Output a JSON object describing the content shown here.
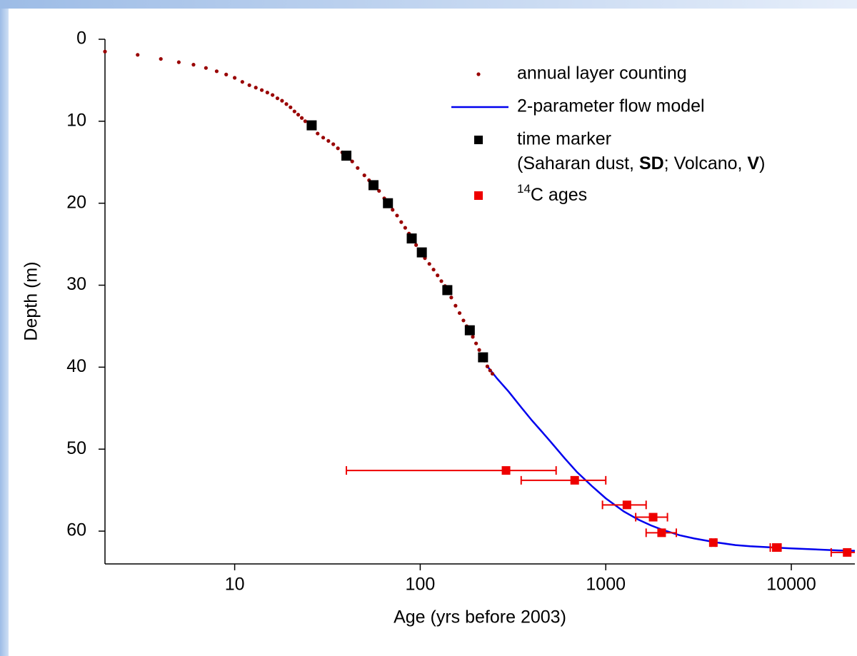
{
  "chart_data": {
    "type": "scatter",
    "x_label": "Age (yrs before 2003)",
    "y_label": "Depth (m)",
    "xscale": "log",
    "y_inverted": true,
    "xlim": [
      2,
      22000
    ],
    "ylim": [
      0,
      64
    ],
    "xticks": [
      10,
      100,
      1000,
      10000
    ],
    "yticks": [
      0,
      10,
      20,
      30,
      40,
      50,
      60
    ],
    "legend": "upper right",
    "legend_note": [
      "(Saharan dust, ",
      "SD",
      "; Volcano, ",
      "V",
      ")"
    ],
    "series": [
      {
        "name": "annual layer counting",
        "kind": "dots",
        "color": "#990000",
        "x": [
          2,
          3,
          4,
          5,
          6,
          7,
          8,
          9,
          10,
          11,
          12,
          13,
          14,
          15,
          16,
          17,
          18,
          19,
          20,
          21,
          22,
          23,
          24,
          25,
          26,
          28,
          30,
          32,
          34,
          36,
          38,
          40,
          43,
          46,
          50,
          53,
          56,
          60,
          64,
          67,
          71,
          75,
          79,
          83,
          87,
          90,
          95,
          100,
          106,
          112,
          118,
          124,
          130,
          136,
          140,
          147,
          155,
          163,
          171,
          178,
          185,
          192,
          200,
          208,
          215,
          222,
          230,
          238,
          245
        ],
        "y": [
          1.5,
          1.9,
          2.4,
          2.8,
          3.1,
          3.5,
          3.9,
          4.3,
          4.7,
          5.2,
          5.6,
          5.9,
          6.2,
          6.5,
          6.8,
          7.2,
          7.5,
          7.9,
          8.3,
          8.8,
          9.2,
          9.6,
          10,
          10.3,
          10.6,
          11.5,
          12,
          12.4,
          12.8,
          13.3,
          13.8,
          14.2,
          14.9,
          15.7,
          16.6,
          17.2,
          17.8,
          18.5,
          19.4,
          20,
          20.8,
          21.5,
          22.3,
          23,
          23.7,
          24.3,
          25.1,
          26,
          26.7,
          27.4,
          28.1,
          28.8,
          29.5,
          30.1,
          30.6,
          31.5,
          32.5,
          33.4,
          34.3,
          35,
          35.6,
          36.3,
          37.1,
          37.9,
          38.6,
          39.2,
          39.9,
          40.4,
          40.8
        ]
      },
      {
        "name": "2-parameter flow model",
        "kind": "line",
        "color": "#0000ee",
        "x": [
          230,
          260,
          300,
          350,
          400,
          450,
          500,
          600,
          700,
          850,
          1000,
          1250,
          1500,
          1750,
          2000,
          2500,
          3000,
          4000,
          5000,
          6000,
          8000,
          10000,
          14000,
          18000,
          22000
        ],
        "y": [
          39.9,
          41.4,
          43,
          44.9,
          46.5,
          47.8,
          49,
          51.1,
          52.8,
          54.6,
          56,
          57.6,
          58.6,
          59.3,
          59.8,
          60.5,
          60.9,
          61.4,
          61.7,
          61.85,
          62,
          62.1,
          62.25,
          62.35,
          62.4
        ]
      },
      {
        "name": "time marker",
        "kind": "squares",
        "color": "#000000",
        "x": [
          26,
          40,
          56,
          67,
          90,
          102,
          140,
          185,
          218
        ],
        "y": [
          10.5,
          14.2,
          17.8,
          20,
          24.3,
          26,
          30.6,
          35.5,
          38.8
        ]
      },
      {
        "name": "14C ages",
        "kind": "errsquares",
        "color": "#ee0000",
        "x": [
          290,
          680,
          1300,
          1800,
          2000,
          3800,
          8300,
          20000
        ],
        "y": [
          52.6,
          53.8,
          56.8,
          58.3,
          60.2,
          61.4,
          62,
          62.6
        ],
        "xerr_low": [
          40,
          350,
          960,
          1450,
          1650,
          3700,
          7700,
          16400
        ],
        "xerr_high": [
          540,
          1000,
          1650,
          2150,
          2400,
          3900,
          8800,
          22000
        ]
      }
    ]
  }
}
